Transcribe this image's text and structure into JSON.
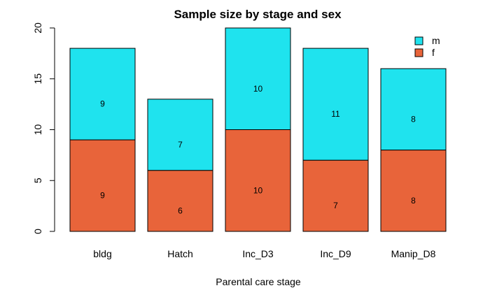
{
  "chart_data": {
    "type": "bar",
    "stacked": true,
    "title": "Sample size by stage and sex",
    "xlabel": "Parental care stage",
    "ylabel": "",
    "categories": [
      "bldg",
      "Hatch",
      "Inc_D3",
      "Inc_D9",
      "Manip_D8"
    ],
    "series": [
      {
        "name": "f",
        "values": [
          9,
          6,
          10,
          7,
          8
        ],
        "color": "#E8643A"
      },
      {
        "name": "m",
        "values": [
          9,
          7,
          10,
          11,
          8
        ],
        "color": "#1FE3EE"
      }
    ],
    "ylim": [
      0,
      20
    ],
    "yticks": [
      0,
      5,
      10,
      15,
      20
    ],
    "grid": false,
    "legend": {
      "position": "top-right",
      "entries": [
        {
          "name": "m",
          "color": "#1FE3EE"
        },
        {
          "name": "f",
          "color": "#E8643A"
        }
      ]
    }
  }
}
